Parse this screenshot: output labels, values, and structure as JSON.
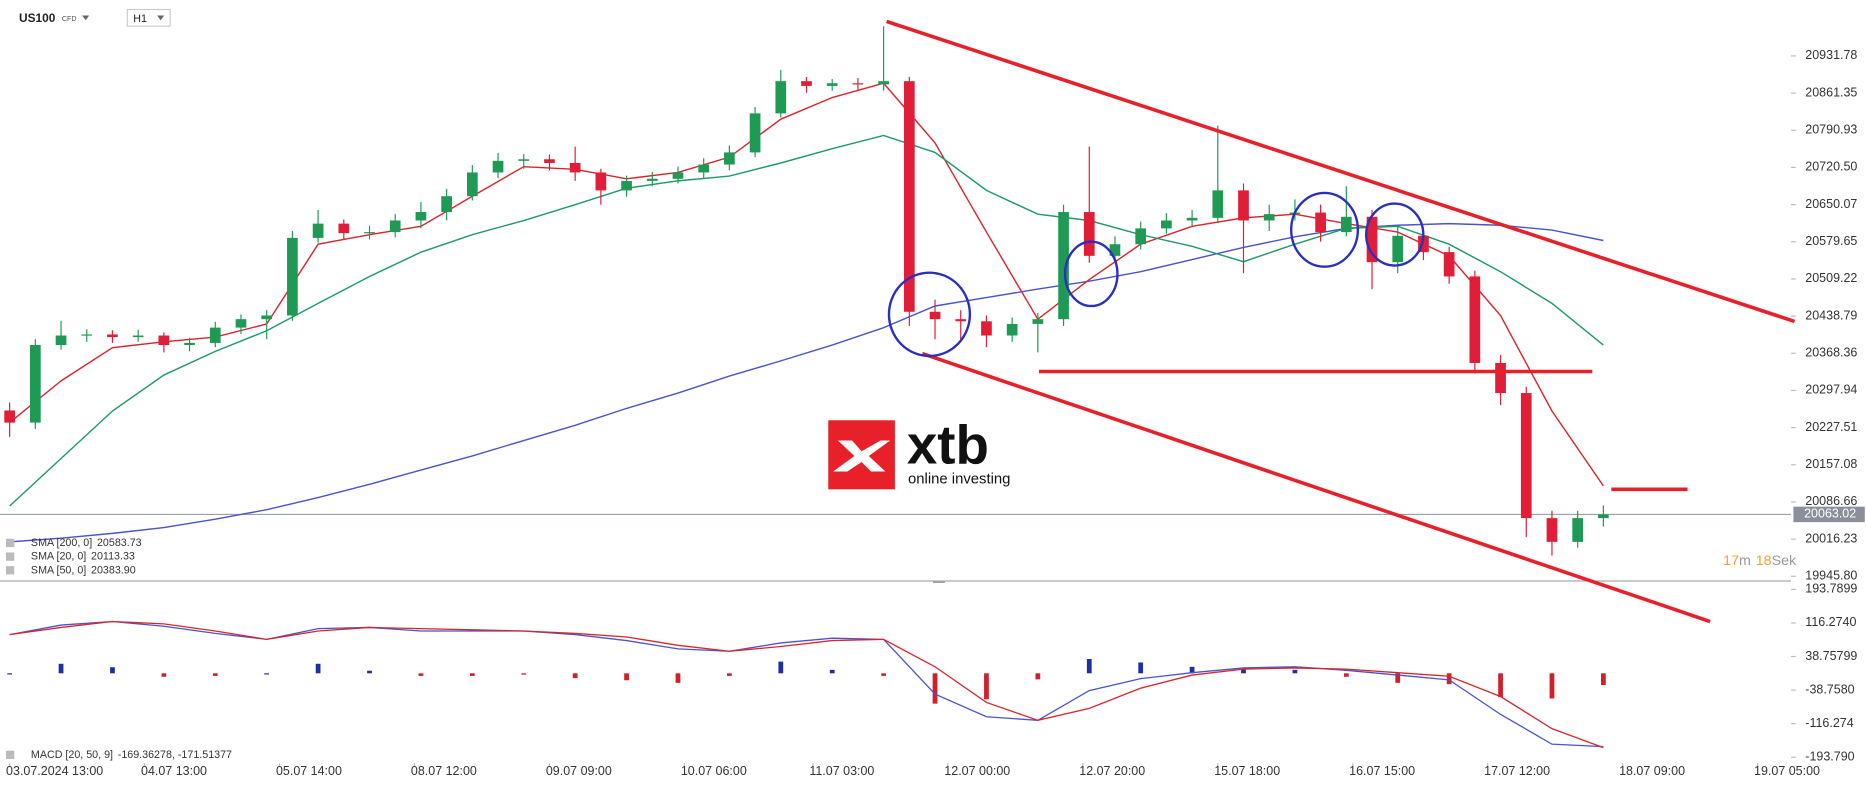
{
  "header": {
    "symbol": "US100",
    "kind": "CFD",
    "timeframe": "H1"
  },
  "logo": {
    "name": "xtb",
    "tagline": "online investing"
  },
  "countdown": {
    "minutes": "17",
    "minutes_unit": "m",
    "seconds": "18",
    "seconds_unit": "Sek"
  },
  "chart_data": [
    {
      "type": "candlestick",
      "xlim": [
        -1.5,
        277.2
      ],
      "ylim": [
        19936.8,
        21026.5
      ],
      "xticks": [
        {
          "value": 0,
          "label": "03.07.2024  13:00"
        },
        {
          "value": 21,
          "label": "04.07  13:00"
        },
        {
          "value": 42,
          "label": "05.07  14:00"
        },
        {
          "value": 63,
          "label": "08.07  12:00"
        },
        {
          "value": 84,
          "label": "09.07  09:00"
        },
        {
          "value": 105,
          "label": "10.07  06:00"
        },
        {
          "value": 125,
          "label": "11.07  03:00"
        },
        {
          "value": 146,
          "label": "12.07  00:00"
        },
        {
          "value": 167,
          "label": "12.07  20:00"
        },
        {
          "value": 188,
          "label": "15.07  18:00"
        },
        {
          "value": 209,
          "label": "16.07  15:00"
        },
        {
          "value": 230,
          "label": "17.07  12:00"
        },
        {
          "value": 251,
          "label": "18.07  09:00"
        },
        {
          "value": 272,
          "label": "19.07  05:00"
        }
      ],
      "yticks": [
        20931.78,
        20861.35,
        20790.93,
        {
          "value": 20720.5,
          "label": "20720.50"
        },
        20650.07,
        20579.65,
        20509.22,
        20438.79,
        20368.36,
        20297.94,
        20227.51,
        20157.08,
        20086.66,
        20016.23,
        {
          "value": 19945.8,
          "label": "19945.80"
        }
      ],
      "current_price": 20063.02,
      "up_color": "#1f9a55",
      "down_color": "#e01e37",
      "candles": {
        "x": [
          0,
          4,
          8,
          12,
          16,
          20,
          24,
          28,
          32,
          36,
          40,
          44,
          48,
          52,
          56,
          60,
          64,
          68,
          72,
          76,
          80,
          84,
          88,
          92,
          96,
          100,
          104,
          108,
          112,
          116,
          120,
          124,
          128,
          132,
          136,
          140,
          144,
          148,
          152,
          156,
          160,
          164,
          168,
          172,
          176,
          180,
          184,
          188,
          192,
          196,
          200,
          204,
          208,
          212,
          216,
          220,
          224,
          228,
          232,
          236,
          240,
          244,
          248
        ],
        "open": [
          20260,
          20237,
          20384,
          20402,
          20404,
          20399,
          20402,
          20384,
          20388,
          20417,
          20433,
          20440,
          20587,
          20614,
          20596,
          20598,
          20620,
          20636,
          20666,
          20711,
          20733,
          20736,
          20729,
          20711,
          20677,
          20695,
          20699,
          20711,
          20726,
          20749,
          20823,
          20884,
          20875,
          20880,
          20878,
          20884,
          20447,
          20433,
          20429,
          20402,
          20424,
          20433,
          20636,
          20553,
          20575,
          20605,
          20620,
          20625,
          20677,
          20620,
          20632,
          20635,
          20598,
          20627,
          20541,
          20591,
          20560,
          20514,
          20350,
          20293,
          20056,
          20011,
          20056
        ],
        "high": [
          20275,
          20395,
          20430,
          20414,
          20412,
          20413,
          20408,
          20398,
          20428,
          20442,
          20450,
          20600,
          20640,
          20622,
          20610,
          20632,
          20655,
          20680,
          20725,
          20748,
          20746,
          20745,
          20760,
          20718,
          20705,
          20712,
          20722,
          20738,
          20762,
          20835,
          20905,
          20892,
          20888,
          20890,
          20988,
          20892,
          20470,
          20450,
          20440,
          20436,
          20445,
          20650,
          20760,
          20590,
          20618,
          20634,
          20640,
          20800,
          20690,
          20650,
          20660,
          20650,
          20685,
          20640,
          20610,
          20605,
          20570,
          20525,
          20365,
          20305,
          20070,
          20070,
          20080
        ],
        "low": [
          20210,
          20225,
          20375,
          20390,
          20388,
          20390,
          20370,
          20372,
          20380,
          20405,
          20395,
          20430,
          20578,
          20585,
          20584,
          20588,
          20605,
          20620,
          20658,
          20700,
          20718,
          20715,
          20695,
          20650,
          20665,
          20685,
          20690,
          20700,
          20715,
          20740,
          20815,
          20862,
          20866,
          20868,
          20866,
          20420,
          20395,
          20392,
          20380,
          20390,
          20370,
          20420,
          20540,
          20540,
          20565,
          20595,
          20610,
          20615,
          20520,
          20600,
          20620,
          20580,
          20590,
          20490,
          20520,
          20545,
          20500,
          20330,
          20270,
          20020,
          19985,
          20000,
          20040
        ],
        "close": [
          20237,
          20384,
          20402,
          20404,
          20399,
          20402,
          20384,
          20388,
          20417,
          20433,
          20440,
          20587,
          20614,
          20596,
          20598,
          20620,
          20636,
          20666,
          20711,
          20733,
          20736,
          20729,
          20711,
          20677,
          20695,
          20699,
          20711,
          20726,
          20749,
          20823,
          20884,
          20875,
          20880,
          20878,
          20884,
          20447,
          20433,
          20429,
          20402,
          20424,
          20433,
          20636,
          20553,
          20575,
          20605,
          20620,
          20625,
          20677,
          20620,
          20632,
          20635,
          20598,
          20627,
          20541,
          20591,
          20560,
          20514,
          20350,
          20293,
          20056,
          20011,
          20056,
          20063
        ]
      },
      "x": [
        0,
        8,
        16,
        24,
        32,
        40,
        48,
        56,
        64,
        72,
        80,
        88,
        96,
        104,
        112,
        120,
        128,
        136,
        144,
        152,
        160,
        168,
        176,
        184,
        192,
        200,
        208,
        216,
        224,
        232,
        240,
        248
      ],
      "series": [
        {
          "name": "SMA [200, 0]",
          "legend_value": "20583.73",
          "color": "#4a55c8",
          "values": [
            20011,
            20018,
            20027,
            20038,
            20054,
            20072,
            20095,
            20120,
            20147,
            20174,
            20203,
            20232,
            20264,
            20293,
            20325,
            20354,
            20384,
            20417,
            20458,
            20474,
            20490,
            20505,
            20523,
            20546,
            20569,
            20589,
            20605,
            20611,
            20614,
            20611,
            20602,
            20582
          ]
        },
        {
          "name": "SMA [20, 0]",
          "legend_value": "20113.33",
          "color": "#d9262e",
          "values": [
            20237,
            20316,
            20379,
            20390,
            20399,
            20424,
            20575,
            20593,
            20609,
            20666,
            20722,
            20717,
            20699,
            20711,
            20740,
            20812,
            20853,
            20880,
            20767,
            20598,
            20433,
            20508,
            20575,
            20609,
            20625,
            20632,
            20614,
            20598,
            20553,
            20440,
            20259,
            20117
          ]
        },
        {
          "name": "SMA [50, 0]",
          "legend_value": "20383.90",
          "color": "#1f9a6a",
          "values": [
            20079,
            20169,
            20259,
            20327,
            20372,
            20411,
            20463,
            20514,
            20560,
            20593,
            20620,
            20650,
            20681,
            20695,
            20704,
            20729,
            20756,
            20781,
            20749,
            20677,
            20632,
            20620,
            20593,
            20571,
            20542,
            20575,
            20605,
            20609,
            20575,
            20523,
            20463,
            20384
          ]
        }
      ]
    },
    {
      "type": "macd",
      "name": "MACD [20, 50, 9]",
      "legend_values": "-169.36278, -171.51377",
      "xlim": [
        -1.5,
        277.2
      ],
      "ylim": [
        -207.5,
        210.3
      ],
      "yticks": [
        193.7899,
        {
          "value": 116.274,
          "label": "116.2740"
        },
        38.75799,
        {
          "value": -38.758,
          "label": "-38.7580"
        },
        -116.274,
        {
          "value": -193.79,
          "label": "-193.790"
        }
      ],
      "x": [
        0,
        8,
        16,
        24,
        32,
        40,
        48,
        56,
        64,
        72,
        80,
        88,
        96,
        104,
        112,
        120,
        128,
        136,
        144,
        152,
        160,
        168,
        176,
        184,
        192,
        200,
        208,
        216,
        224,
        232,
        240,
        248
      ],
      "series": [
        {
          "color": "#4a55c8",
          "values": [
            89.3,
            111.3,
            119.6,
            108.6,
            92.1,
            78.3,
            103.1,
            105.8,
            97.6,
            97.6,
            97.6,
            89.3,
            75.6,
            56.4,
            50.9,
            70.1,
            81.1,
            78.3,
            -48.1,
            -100.3,
            -108.6,
            -39.9,
            -12.4,
            1.4,
            12.4,
            15.1,
            6.9,
            -4.1,
            -15.1,
            -94.8,
            -163.6,
            -169.36278
          ]
        },
        {
          "color": "#d9262e",
          "values": [
            89.3,
            105.8,
            119.6,
            114.1,
            97.6,
            78.3,
            97.6,
            105.8,
            103.1,
            100.3,
            97.6,
            92.1,
            83.8,
            64.6,
            50.9,
            61.9,
            75.6,
            78.3,
            15.1,
            -67.4,
            -108.6,
            -81.1,
            -34.4,
            -4.1,
            9.6,
            12.4,
            9.6,
            1.4,
            -6.9,
            -53.6,
            -127.8,
            -171.51377
          ]
        }
      ],
      "histogram": {
        "up_color": "#1f2fa3",
        "down_color": "#d0202a",
        "values": [
          0,
          22,
          14,
          -8,
          -6,
          0,
          22,
          6,
          -6,
          -6,
          -3,
          -11,
          -16,
          -22,
          -6,
          27,
          8,
          -6,
          -70,
          -60,
          -14,
          33,
          25,
          15,
          10,
          8,
          -8,
          -22,
          -25,
          -55,
          -58,
          -27
        ]
      }
    }
  ]
}
